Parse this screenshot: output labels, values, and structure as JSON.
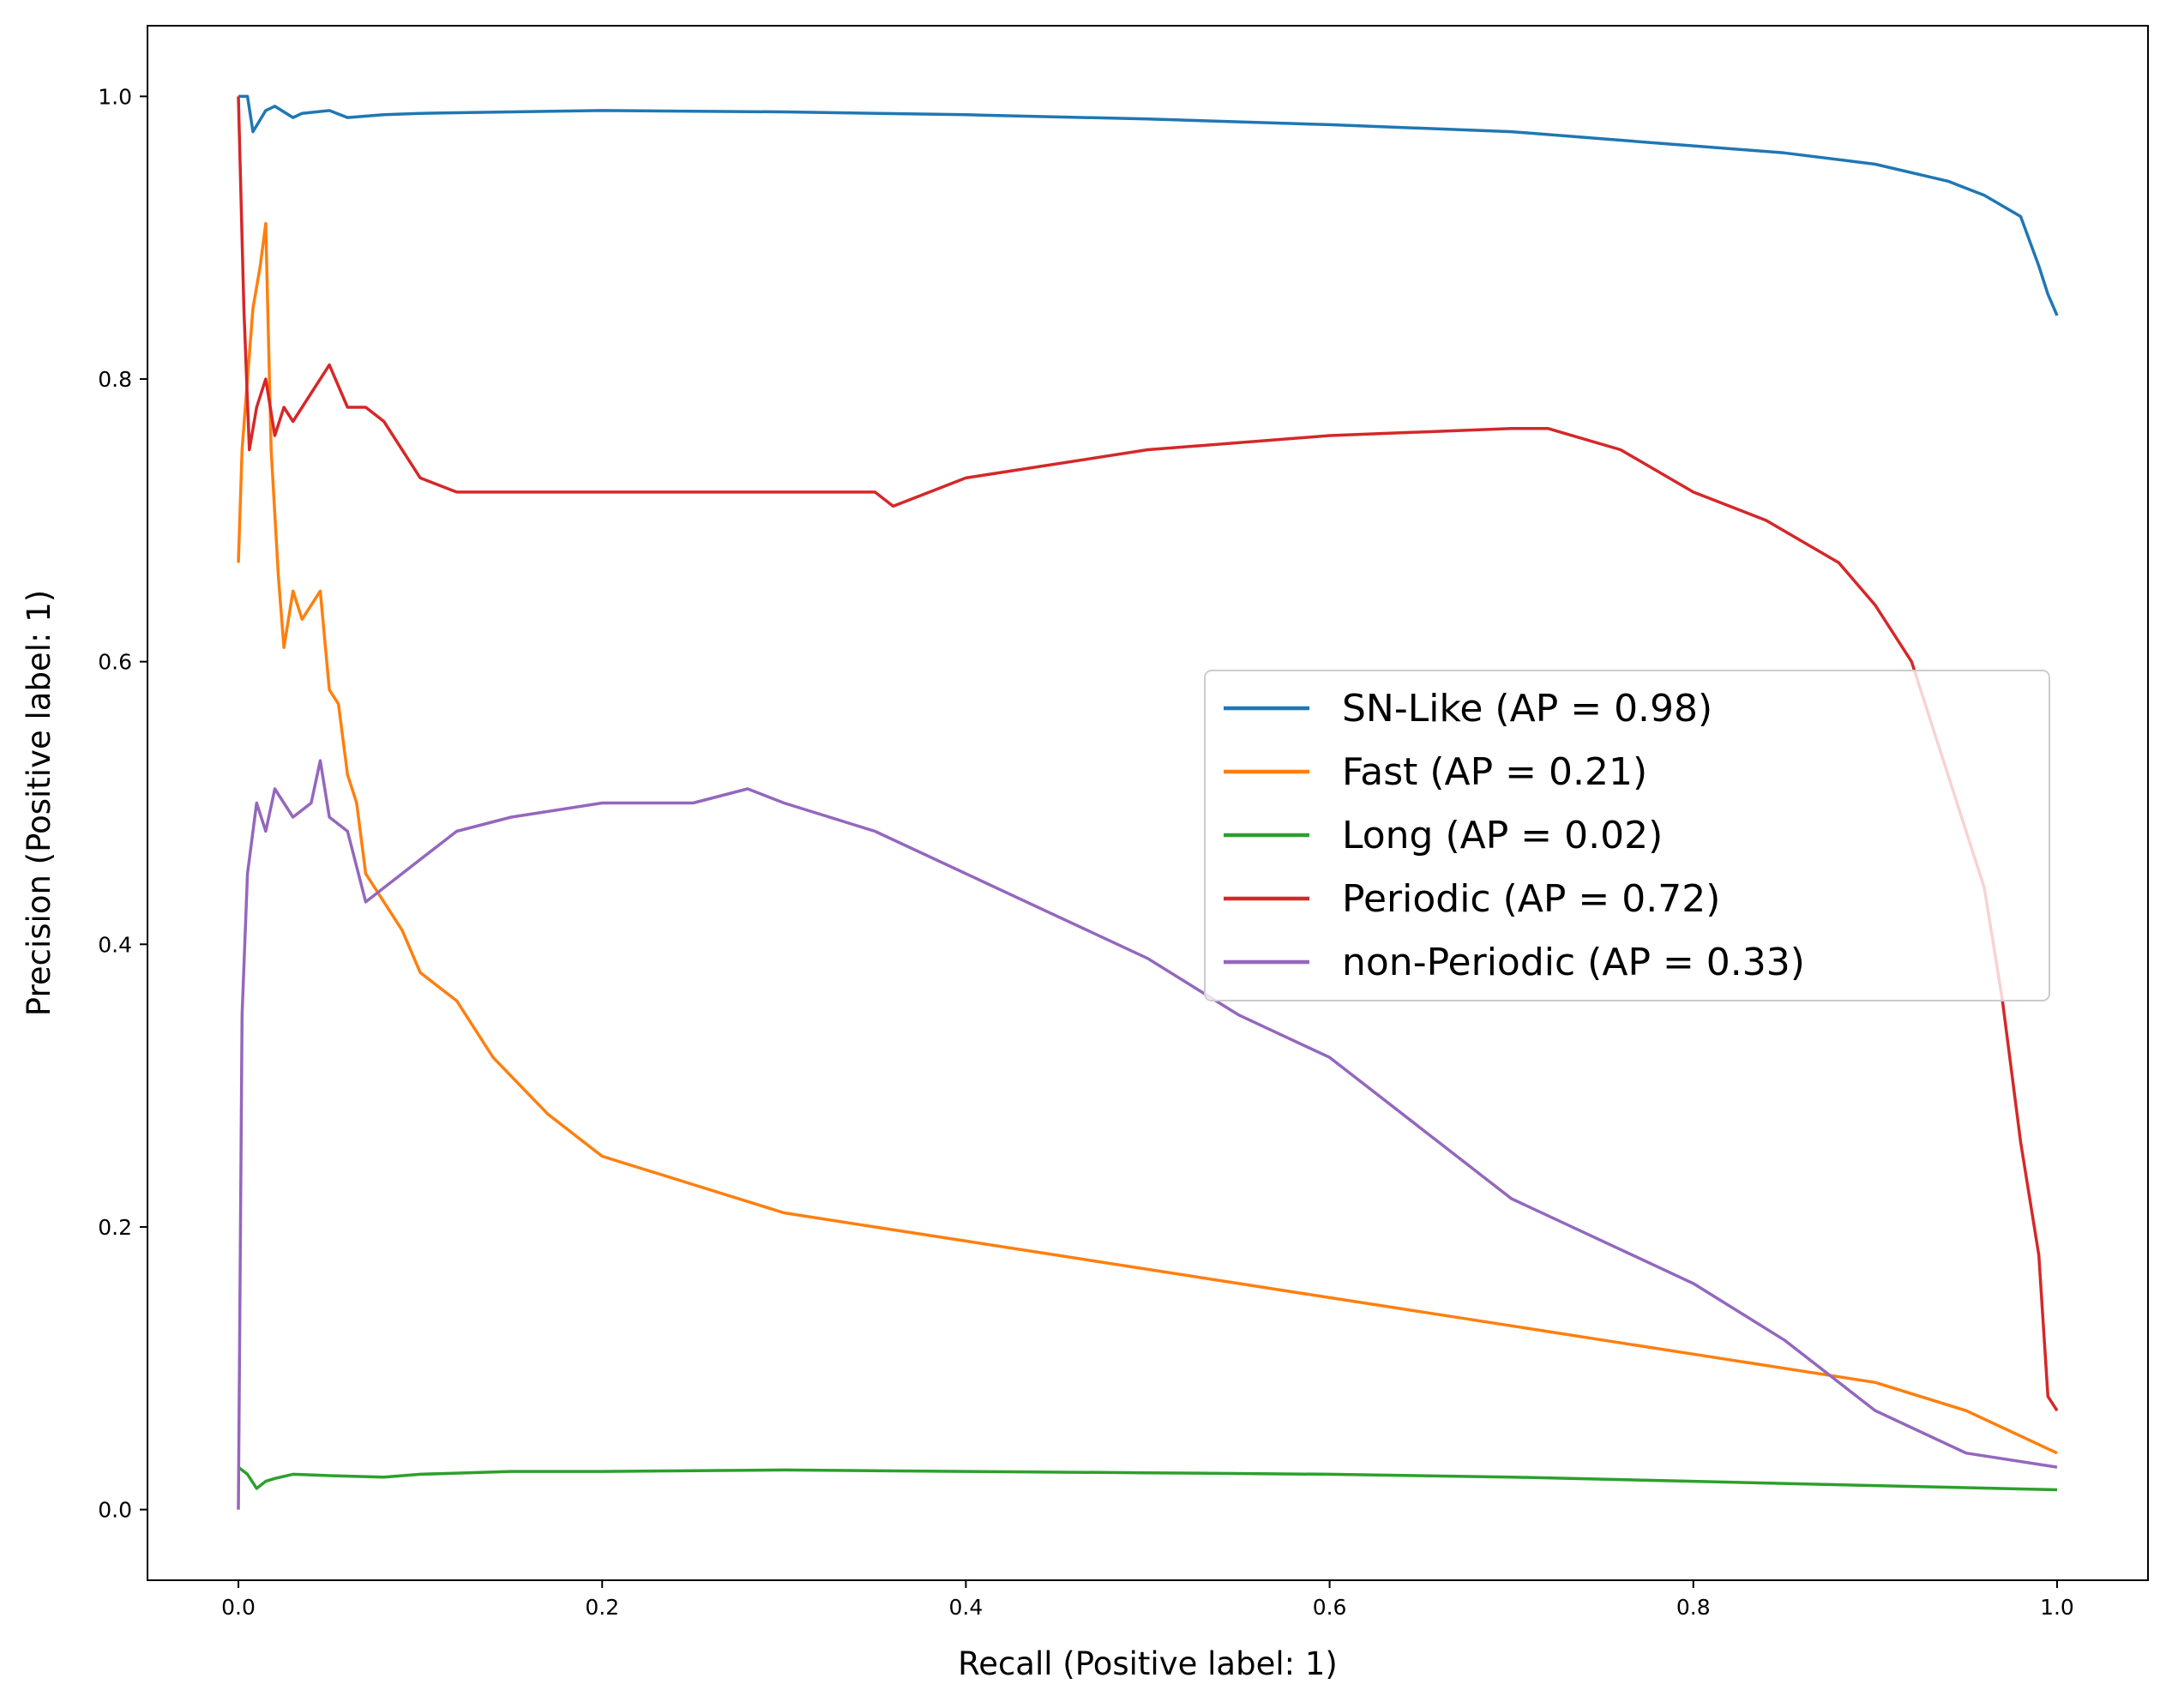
{
  "chart_data": {
    "type": "line",
    "title": "",
    "xlabel": "Recall (Positive label: 1)",
    "ylabel": "Precision (Positive label: 1)",
    "xlim": [
      -0.05,
      1.05
    ],
    "ylim": [
      -0.05,
      1.05
    ],
    "xticks": [
      0.0,
      0.2,
      0.4,
      0.6,
      0.8,
      1.0
    ],
    "yticks": [
      0.0,
      0.2,
      0.4,
      0.6,
      0.8,
      1.0
    ],
    "tick_format": "0.0",
    "grid": false,
    "legend_placement": "center-right",
    "series": [
      {
        "name": "SN-Like (AP = 0.98)",
        "color": "#1f77b4",
        "x": [
          0.0,
          0.005,
          0.008,
          0.015,
          0.02,
          0.03,
          0.035,
          0.05,
          0.06,
          0.08,
          0.1,
          0.15,
          0.2,
          0.3,
          0.4,
          0.5,
          0.6,
          0.7,
          0.75,
          0.8,
          0.85,
          0.9,
          0.94,
          0.96,
          0.98,
          0.99,
          0.995,
          1.0
        ],
        "y": [
          1.0,
          1.0,
          0.975,
          0.99,
          0.993,
          0.985,
          0.988,
          0.99,
          0.985,
          0.987,
          0.988,
          0.989,
          0.99,
          0.989,
          0.987,
          0.984,
          0.98,
          0.975,
          0.97,
          0.965,
          0.96,
          0.952,
          0.94,
          0.93,
          0.915,
          0.88,
          0.86,
          0.845
        ]
      },
      {
        "name": "Fast (AP = 0.21)",
        "color": "#ff7f0e",
        "x": [
          0.0,
          0.002,
          0.005,
          0.008,
          0.012,
          0.015,
          0.018,
          0.022,
          0.025,
          0.03,
          0.035,
          0.04,
          0.045,
          0.05,
          0.055,
          0.06,
          0.065,
          0.07,
          0.08,
          0.09,
          0.1,
          0.11,
          0.12,
          0.14,
          0.17,
          0.2,
          0.25,
          0.3,
          0.35,
          0.4,
          0.45,
          0.5,
          0.55,
          0.6,
          0.65,
          0.7,
          0.75,
          0.8,
          0.85,
          0.9,
          0.95,
          1.0
        ],
        "y": [
          0.67,
          0.75,
          0.8,
          0.85,
          0.88,
          0.91,
          0.75,
          0.66,
          0.61,
          0.65,
          0.63,
          0.64,
          0.65,
          0.58,
          0.57,
          0.52,
          0.5,
          0.45,
          0.43,
          0.41,
          0.38,
          0.37,
          0.36,
          0.32,
          0.28,
          0.25,
          0.23,
          0.21,
          0.2,
          0.19,
          0.18,
          0.17,
          0.16,
          0.15,
          0.14,
          0.13,
          0.12,
          0.11,
          0.1,
          0.09,
          0.07,
          0.04
        ]
      },
      {
        "name": "Long (AP = 0.02)",
        "color": "#2ca02c",
        "x": [
          0.0,
          0.005,
          0.01,
          0.015,
          0.02,
          0.03,
          0.05,
          0.08,
          0.1,
          0.15,
          0.2,
          0.3,
          0.4,
          0.5,
          0.6,
          0.7,
          0.8,
          0.9,
          1.0
        ],
        "y": [
          0.03,
          0.025,
          0.015,
          0.02,
          0.022,
          0.025,
          0.024,
          0.023,
          0.025,
          0.027,
          0.027,
          0.028,
          0.027,
          0.026,
          0.025,
          0.023,
          0.02,
          0.017,
          0.014
        ]
      },
      {
        "name": "Periodic (AP = 0.72)",
        "color": "#d62728",
        "x": [
          0.0,
          0.003,
          0.006,
          0.01,
          0.015,
          0.02,
          0.025,
          0.03,
          0.04,
          0.05,
          0.06,
          0.07,
          0.08,
          0.1,
          0.12,
          0.15,
          0.2,
          0.25,
          0.3,
          0.35,
          0.36,
          0.4,
          0.5,
          0.6,
          0.7,
          0.72,
          0.76,
          0.8,
          0.84,
          0.88,
          0.9,
          0.92,
          0.94,
          0.96,
          0.97,
          0.98,
          0.99,
          0.995,
          1.0
        ],
        "y": [
          1.0,
          0.85,
          0.75,
          0.78,
          0.8,
          0.76,
          0.78,
          0.77,
          0.79,
          0.81,
          0.78,
          0.78,
          0.77,
          0.73,
          0.72,
          0.72,
          0.72,
          0.72,
          0.72,
          0.72,
          0.71,
          0.73,
          0.75,
          0.76,
          0.765,
          0.765,
          0.75,
          0.72,
          0.7,
          0.67,
          0.64,
          0.6,
          0.52,
          0.44,
          0.36,
          0.26,
          0.18,
          0.08,
          0.07
        ]
      },
      {
        "name": "non-Periodic (AP = 0.33)",
        "color": "#9467bd",
        "x": [
          0.0,
          0.002,
          0.005,
          0.01,
          0.015,
          0.02,
          0.03,
          0.04,
          0.045,
          0.05,
          0.06,
          0.07,
          0.08,
          0.1,
          0.12,
          0.15,
          0.2,
          0.25,
          0.28,
          0.3,
          0.35,
          0.4,
          0.45,
          0.5,
          0.55,
          0.6,
          0.65,
          0.7,
          0.75,
          0.8,
          0.85,
          0.9,
          0.95,
          1.0
        ],
        "y": [
          0.0,
          0.35,
          0.45,
          0.5,
          0.48,
          0.51,
          0.49,
          0.5,
          0.53,
          0.49,
          0.48,
          0.43,
          0.44,
          0.46,
          0.48,
          0.49,
          0.5,
          0.5,
          0.51,
          0.5,
          0.48,
          0.45,
          0.42,
          0.39,
          0.35,
          0.32,
          0.27,
          0.22,
          0.19,
          0.16,
          0.12,
          0.07,
          0.04,
          0.03
        ]
      }
    ]
  }
}
